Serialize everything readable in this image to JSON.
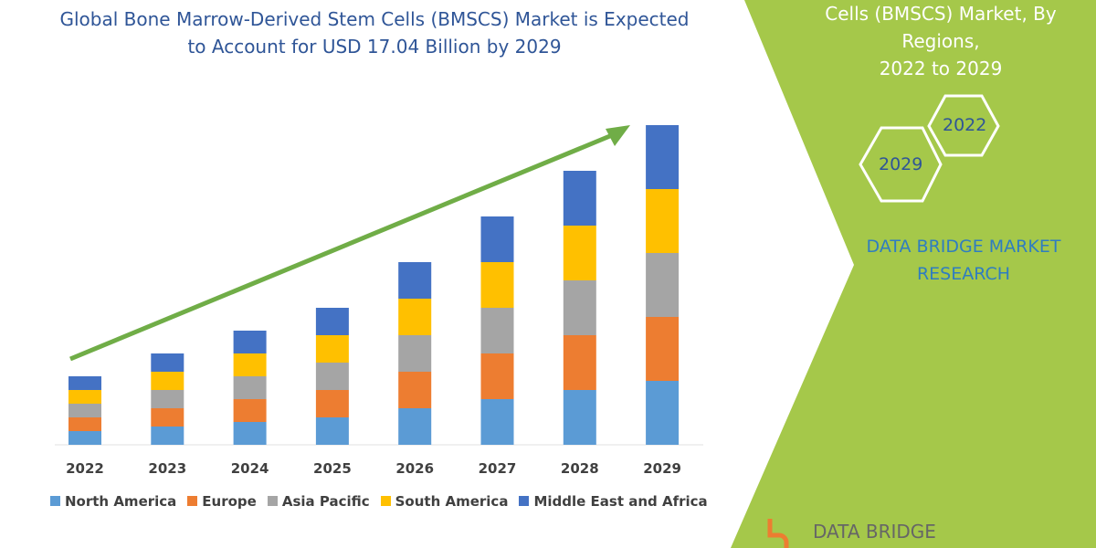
{
  "title_left": [
    "Global Bone Marrow-Derived Stem Cells (BMSCS) Market is Expected",
    "to Account for USD 17.04 Billion by 2029"
  ],
  "title_right": [
    "Cells (BMSCS) Market, By Regions,",
    "2022 to 2029"
  ],
  "hex_labels": [
    "2022",
    "2029"
  ],
  "brand_text": [
    "DATA BRIDGE MARKET",
    "RESEARCH"
  ],
  "logo_text": "DATA BRIDGE",
  "colors": {
    "green_panel": "#a5c84a",
    "arrow": "#70ad47",
    "title": "#2f5597"
  },
  "chart_data": {
    "type": "bar",
    "stacked": true,
    "grid": false,
    "legend": "bottom",
    "categories": [
      "2022",
      "2023",
      "2024",
      "2025",
      "2026",
      "2027",
      "2028",
      "2029"
    ],
    "series": [
      {
        "name": "North America",
        "color": "#5b9bd5",
        "values": [
          15,
          20,
          25,
          30,
          40,
          50,
          60,
          70
        ]
      },
      {
        "name": "Europe",
        "color": "#ed7d31",
        "values": [
          15,
          20,
          25,
          30,
          40,
          50,
          60,
          70
        ]
      },
      {
        "name": "Asia Pacific",
        "color": "#a5a5a5",
        "values": [
          15,
          20,
          25,
          30,
          40,
          50,
          60,
          70
        ]
      },
      {
        "name": "South America",
        "color": "#ffc000",
        "values": [
          15,
          20,
          25,
          30,
          40,
          50,
          60,
          70
        ]
      },
      {
        "name": "Middle East and Africa",
        "color": "#4472c4",
        "values": [
          15,
          20,
          25,
          30,
          40,
          50,
          60,
          70
        ]
      }
    ],
    "trend_arrow": true
  }
}
